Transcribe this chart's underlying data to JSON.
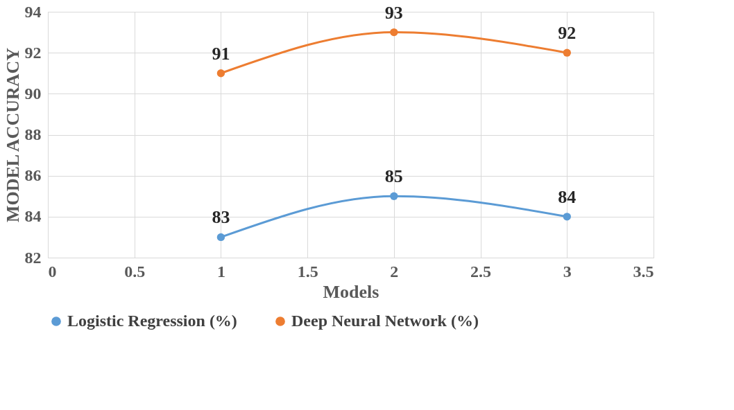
{
  "chart_data": {
    "type": "line",
    "xlabel": "Models",
    "ylabel": "MODEL ACCURACY",
    "x": [
      1,
      2,
      3
    ],
    "series": [
      {
        "name": "Logistic Regression (%)",
        "color": "#5b9bd5",
        "values": [
          83,
          85,
          84
        ]
      },
      {
        "name": "Deep Neural Network (%)",
        "color": "#ed7d31",
        "values": [
          91,
          93,
          92
        ]
      }
    ],
    "xlim": [
      0,
      3.5
    ],
    "xticks": [
      0,
      0.5,
      1,
      1.5,
      2,
      2.5,
      3,
      3.5
    ],
    "ylim": [
      82,
      94
    ],
    "yticks": [
      82,
      84,
      86,
      88,
      90,
      92,
      94
    ],
    "grid": true,
    "legend": "bottom",
    "marker": "circle",
    "line_style": "solid",
    "data_labels": true
  }
}
